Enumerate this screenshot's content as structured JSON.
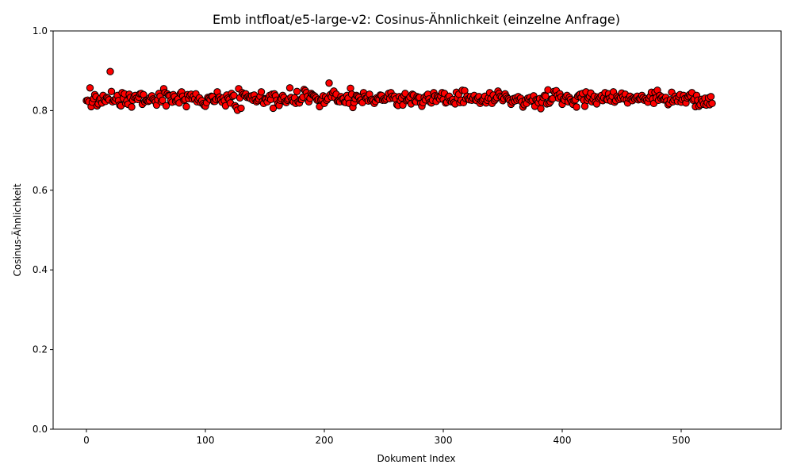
{
  "chart_data": {
    "type": "scatter",
    "title": "Emb intfloat/e5-large-v2: Cosinus-Ähnlichkeit (einzelne Anfrage)",
    "xlabel": "Dokument Index",
    "ylabel": "Cosinus-Ähnlichkeit",
    "xlim": [
      -28,
      584
    ],
    "ylim": [
      0.0,
      1.0
    ],
    "xticks": [
      0,
      100,
      200,
      300,
      400,
      500
    ],
    "xtick_labels": [
      "0",
      "100",
      "200",
      "300",
      "400",
      "500"
    ],
    "yticks": [
      0.0,
      0.2,
      0.4,
      0.6,
      0.8,
      1.0
    ],
    "ytick_labels": [
      "0.0",
      "0.2",
      "0.4",
      "0.6",
      "0.8",
      "1.0"
    ],
    "grid": false,
    "marker_color": "#ff0000",
    "marker_edge_color": "#000000",
    "y": [
      0.825,
      0.826,
      0.822,
      0.857,
      0.81,
      0.821,
      0.83,
      0.84,
      0.835,
      0.812,
      0.817,
      0.828,
      0.831,
      0.819,
      0.838,
      0.826,
      0.823,
      0.833,
      0.831,
      0.827,
      0.898,
      0.848,
      0.822,
      0.826,
      0.824,
      0.831,
      0.838,
      0.825,
      0.814,
      0.812,
      0.845,
      0.831,
      0.842,
      0.818,
      0.824,
      0.816,
      0.841,
      0.833,
      0.809,
      0.826,
      0.834,
      0.838,
      0.831,
      0.828,
      0.834,
      0.842,
      0.843,
      0.816,
      0.84,
      0.822,
      0.826,
      0.825,
      0.823,
      0.825,
      0.834,
      0.837,
      0.829,
      0.826,
      0.822,
      0.814,
      0.827,
      0.843,
      0.836,
      0.822,
      0.826,
      0.855,
      0.845,
      0.812,
      0.842,
      0.838,
      0.837,
      0.825,
      0.821,
      0.84,
      0.835,
      0.823,
      0.826,
      0.829,
      0.819,
      0.843,
      0.847,
      0.836,
      0.826,
      0.828,
      0.81,
      0.84,
      0.83,
      0.838,
      0.841,
      0.829,
      0.836,
      0.829,
      0.842,
      0.822,
      0.827,
      0.832,
      0.82,
      0.825,
      0.817,
      0.813,
      0.811,
      0.82,
      0.833,
      0.831,
      0.828,
      0.836,
      0.835,
      0.823,
      0.823,
      0.828,
      0.847,
      0.83,
      0.834,
      0.828,
      0.821,
      0.832,
      0.825,
      0.812,
      0.839,
      0.831,
      0.828,
      0.819,
      0.843,
      0.836,
      0.838,
      0.812,
      0.808,
      0.801,
      0.855,
      0.832,
      0.806,
      0.845,
      0.841,
      0.838,
      0.842,
      0.833,
      0.835,
      0.832,
      0.83,
      0.837,
      0.826,
      0.839,
      0.828,
      0.822,
      0.825,
      0.829,
      0.836,
      0.847,
      0.823,
      0.818,
      0.83,
      0.829,
      0.822,
      0.832,
      0.838,
      0.828,
      0.841,
      0.806,
      0.842,
      0.837,
      0.826,
      0.817,
      0.813,
      0.826,
      0.83,
      0.838,
      0.833,
      0.822,
      0.82,
      0.826,
      0.829,
      0.857,
      0.833,
      0.826,
      0.822,
      0.832,
      0.818,
      0.848,
      0.822,
      0.819,
      0.828,
      0.828,
      0.834,
      0.853,
      0.85,
      0.845,
      0.836,
      0.822,
      0.831,
      0.843,
      0.84,
      0.838,
      0.836,
      0.832,
      0.826,
      0.828,
      0.81,
      0.827,
      0.829,
      0.837,
      0.818,
      0.834,
      0.826,
      0.83,
      0.869,
      0.84,
      0.834,
      0.845,
      0.849,
      0.832,
      0.841,
      0.823,
      0.824,
      0.822,
      0.835,
      0.829,
      0.83,
      0.821,
      0.82,
      0.838,
      0.831,
      0.818,
      0.856,
      0.841,
      0.808,
      0.82,
      0.83,
      0.838,
      0.836,
      0.833,
      0.825,
      0.827,
      0.82,
      0.845,
      0.836,
      0.831,
      0.832,
      0.824,
      0.841,
      0.825,
      0.828,
      0.825,
      0.818,
      0.823,
      0.832,
      0.83,
      0.828,
      0.839,
      0.838,
      0.826,
      0.829,
      0.826,
      0.829,
      0.835,
      0.843,
      0.83,
      0.845,
      0.836,
      0.831,
      0.836,
      0.829,
      0.815,
      0.813,
      0.835,
      0.825,
      0.832,
      0.814,
      0.838,
      0.843,
      0.825,
      0.827,
      0.829,
      0.834,
      0.817,
      0.841,
      0.839,
      0.824,
      0.822,
      0.835,
      0.832,
      0.833,
      0.818,
      0.811,
      0.82,
      0.833,
      0.827,
      0.838,
      0.841,
      0.829,
      0.821,
      0.819,
      0.826,
      0.845,
      0.837,
      0.823,
      0.836,
      0.833,
      0.829,
      0.836,
      0.845,
      0.828,
      0.843,
      0.819,
      0.821,
      0.833,
      0.836,
      0.824,
      0.822,
      0.828,
      0.82,
      0.817,
      0.846,
      0.832,
      0.841,
      0.82,
      0.826,
      0.851,
      0.82,
      0.85,
      0.83,
      0.836,
      0.829,
      0.827,
      0.835,
      0.826,
      0.831,
      0.838,
      0.827,
      0.825,
      0.832,
      0.835,
      0.818,
      0.824,
      0.826,
      0.83,
      0.836,
      0.819,
      0.826,
      0.832,
      0.845,
      0.83,
      0.818,
      0.839,
      0.825,
      0.829,
      0.833,
      0.849,
      0.843,
      0.836,
      0.833,
      0.825,
      0.83,
      0.842,
      0.836,
      0.831,
      0.829,
      0.825,
      0.816,
      0.822,
      0.83,
      0.824,
      0.832,
      0.826,
      0.835,
      0.828,
      0.831,
      0.822,
      0.809,
      0.815,
      0.826,
      0.818,
      0.831,
      0.828,
      0.833,
      0.824,
      0.826,
      0.837,
      0.811,
      0.827,
      0.825,
      0.82,
      0.83,
      0.805,
      0.821,
      0.833,
      0.838,
      0.836,
      0.817,
      0.852,
      0.818,
      0.822,
      0.829,
      0.83,
      0.848,
      0.845,
      0.85,
      0.838,
      0.831,
      0.842,
      0.834,
      0.816,
      0.829,
      0.826,
      0.835,
      0.838,
      0.822,
      0.833,
      0.828,
      0.821,
      0.816,
      0.825,
      0.827,
      0.809,
      0.836,
      0.839,
      0.841,
      0.833,
      0.843,
      0.826,
      0.811,
      0.847,
      0.826,
      0.832,
      0.836,
      0.844,
      0.822,
      0.829,
      0.836,
      0.821,
      0.817,
      0.834,
      0.83,
      0.833,
      0.838,
      0.825,
      0.832,
      0.845,
      0.828,
      0.827,
      0.842,
      0.831,
      0.824,
      0.836,
      0.847,
      0.821,
      0.825,
      0.836,
      0.832,
      0.828,
      0.832,
      0.844,
      0.835,
      0.829,
      0.841,
      0.827,
      0.819,
      0.831,
      0.836,
      0.828,
      0.825,
      0.832,
      0.829,
      0.833,
      0.836,
      0.827,
      0.83,
      0.829,
      0.838,
      0.832,
      0.826,
      0.83,
      0.826,
      0.821,
      0.831,
      0.836,
      0.846,
      0.829,
      0.818,
      0.846,
      0.832,
      0.851,
      0.826,
      0.838,
      0.831,
      0.834,
      0.827,
      0.829,
      0.833,
      0.824,
      0.815,
      0.818,
      0.827,
      0.846,
      0.822,
      0.827,
      0.836,
      0.83,
      0.823,
      0.835,
      0.84,
      0.821,
      0.828,
      0.838,
      0.83,
      0.819,
      0.832,
      0.835,
      0.84,
      0.836,
      0.845,
      0.826,
      0.829,
      0.81,
      0.838,
      0.826,
      0.811,
      0.815,
      0.828,
      0.823,
      0.816,
      0.831,
      0.814,
      0.82,
      0.832,
      0.815,
      0.835,
      0.818
    ]
  }
}
